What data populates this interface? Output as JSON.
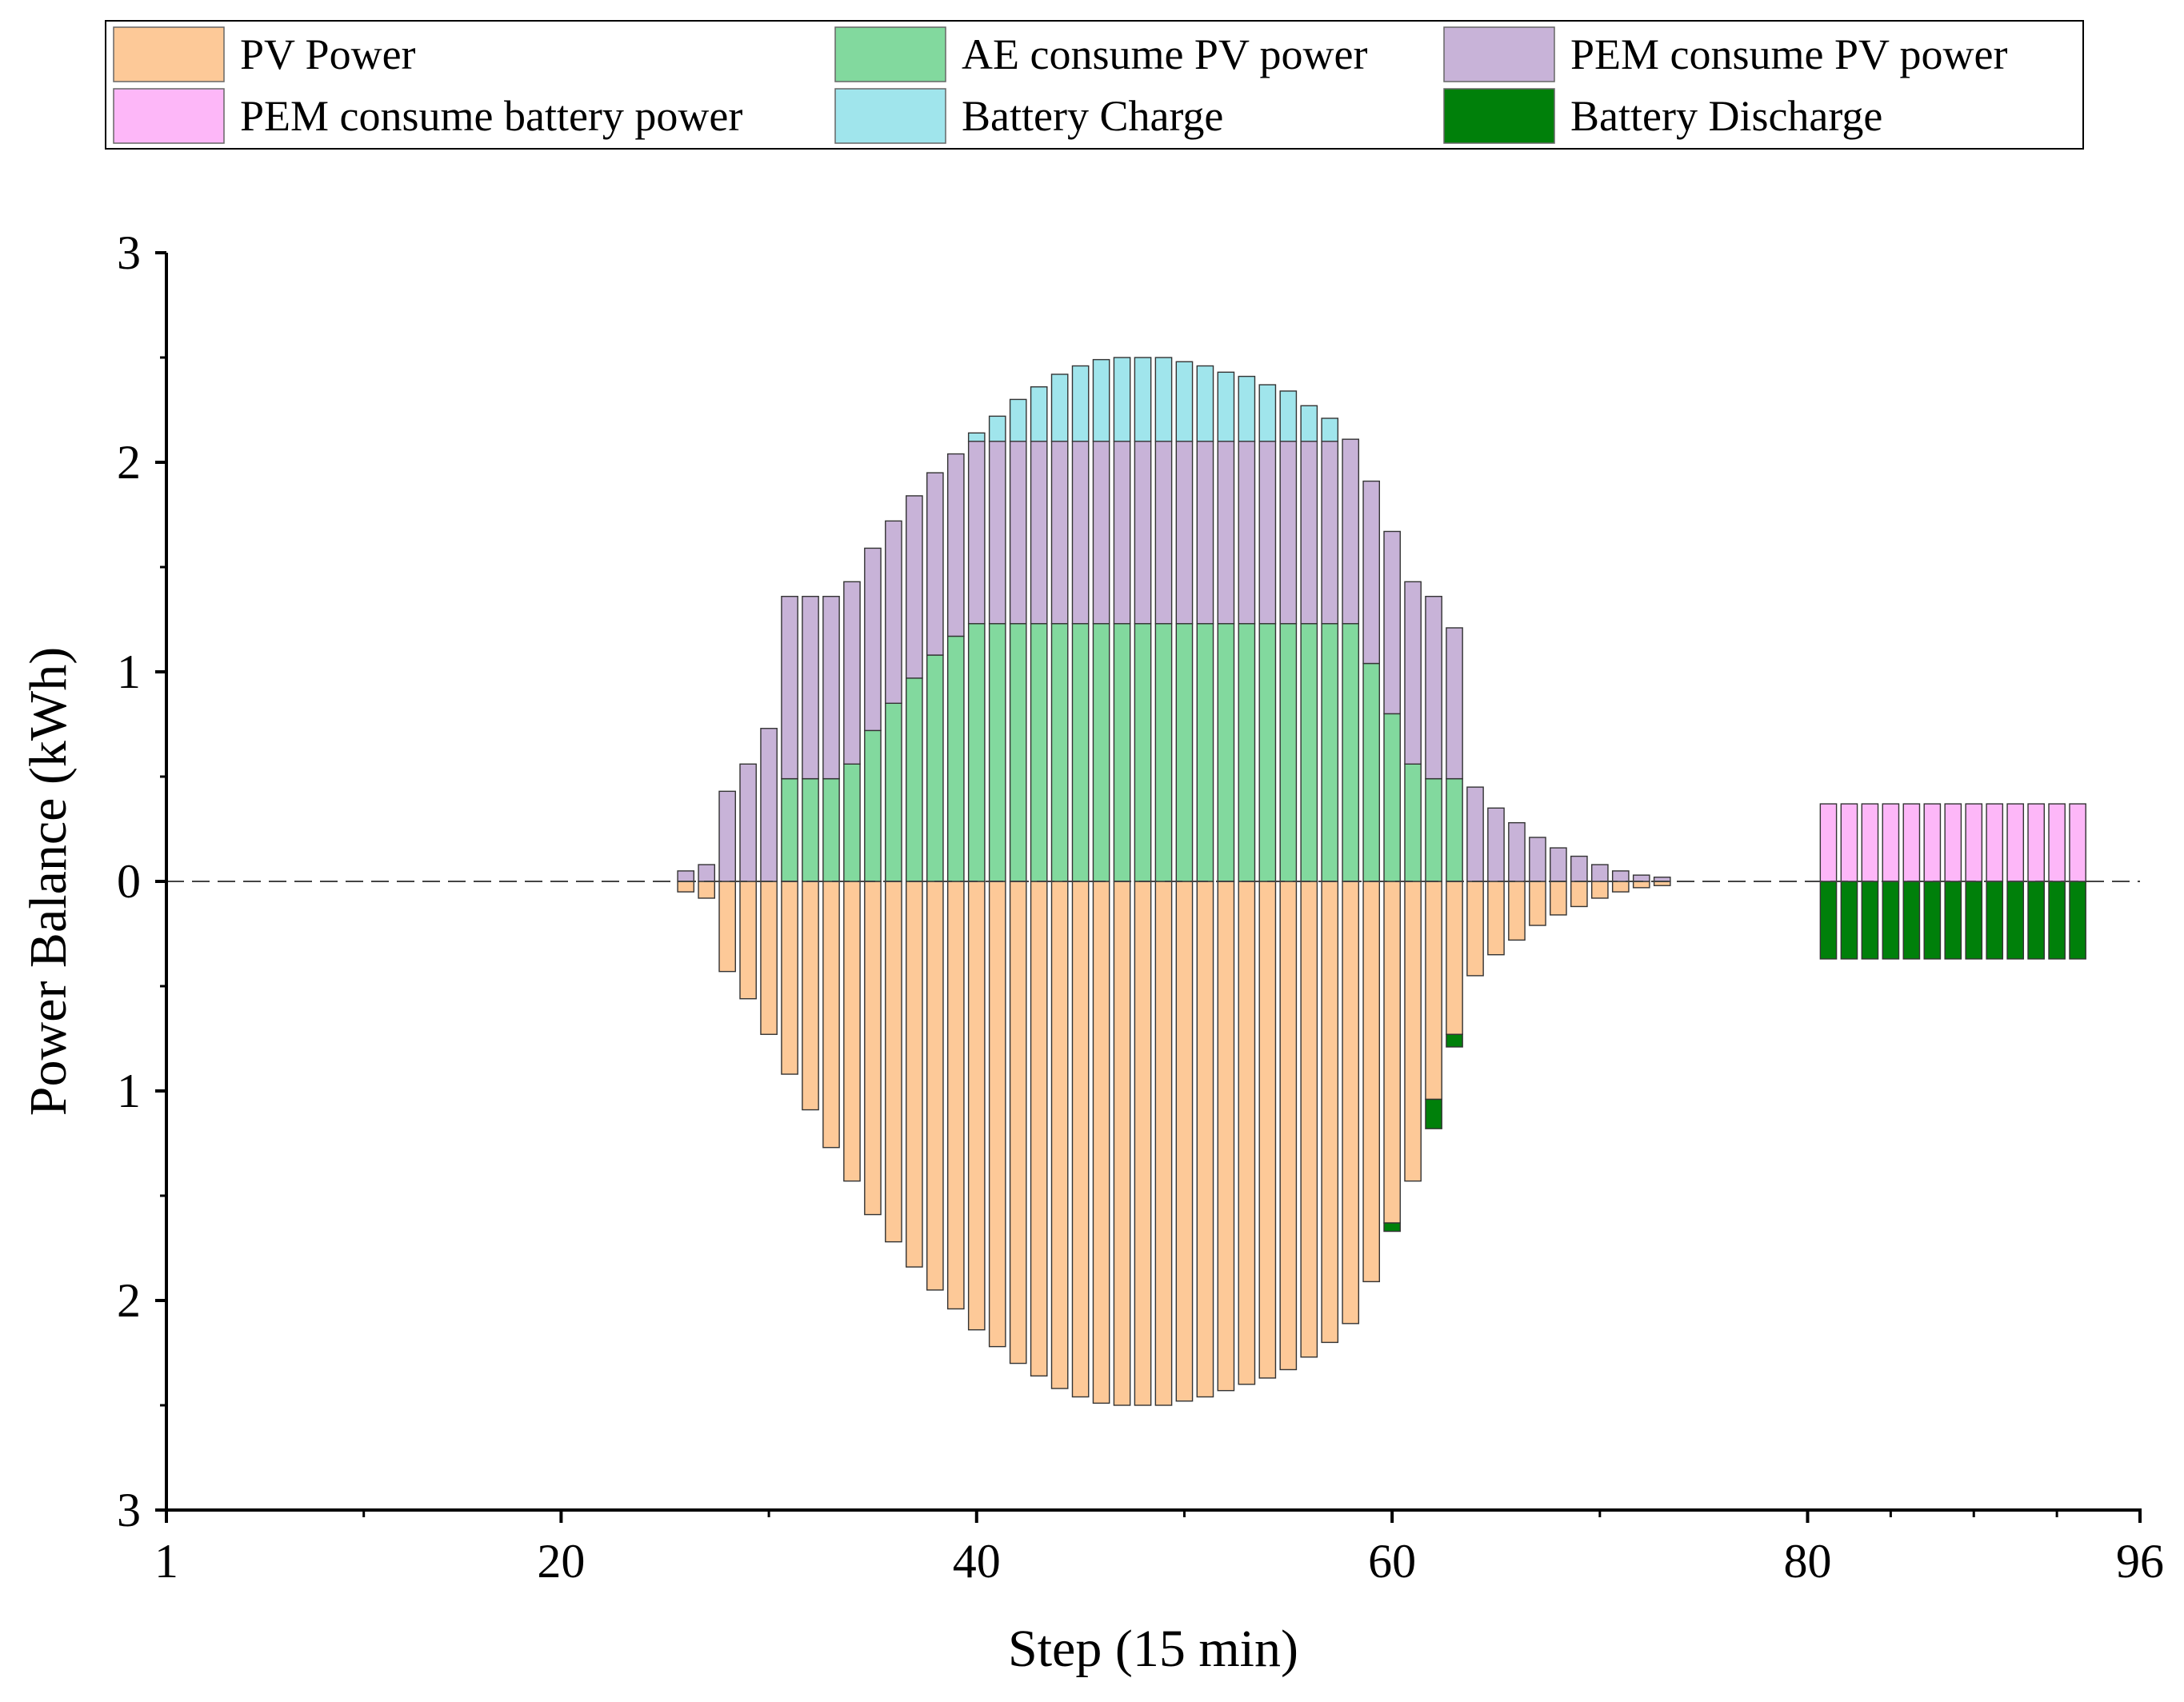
{
  "chart_data": {
    "type": "bar",
    "stacked": true,
    "xlabel": "Step (15 min)",
    "ylabel": "Power Balance (kWh)",
    "xlim": [
      1,
      96
    ],
    "ylim": [
      -3,
      3
    ],
    "x_ticks": [
      1,
      20,
      40,
      60,
      80,
      96
    ],
    "y_ticks": [
      3,
      2,
      1,
      0,
      -1,
      -2,
      -3
    ],
    "y_tick_labels": [
      "3",
      "2",
      "1",
      "0",
      "1",
      "2",
      "3"
    ],
    "zero_line": "dashed",
    "legend_position": "top",
    "colors": {
      "pv_power": "#FDC998",
      "ae_pv": "#82D99E",
      "pem_pv": "#C8B3D8",
      "pem_battery": "#FDB7F8",
      "battery_charge": "#A0E5EC",
      "battery_discharge": "#00800A"
    },
    "series": [
      {
        "key": "pv_power",
        "name": "PV Power",
        "direction": "negative",
        "points": [
          [
            26,
            0.05
          ],
          [
            27,
            0.08
          ],
          [
            28,
            0.43
          ],
          [
            29,
            0.56
          ],
          [
            30,
            0.73
          ],
          [
            31,
            0.92
          ],
          [
            32,
            1.09
          ],
          [
            33,
            1.27
          ],
          [
            34,
            1.43
          ],
          [
            35,
            1.59
          ],
          [
            36,
            1.72
          ],
          [
            37,
            1.84
          ],
          [
            38,
            1.95
          ],
          [
            39,
            2.04
          ],
          [
            40,
            2.14
          ],
          [
            41,
            2.22
          ],
          [
            42,
            2.3
          ],
          [
            43,
            2.36
          ],
          [
            44,
            2.42
          ],
          [
            45,
            2.46
          ],
          [
            46,
            2.49
          ],
          [
            47,
            2.5
          ],
          [
            48,
            2.5
          ],
          [
            49,
            2.5
          ],
          [
            50,
            2.48
          ],
          [
            51,
            2.46
          ],
          [
            52,
            2.43
          ],
          [
            53,
            2.4
          ],
          [
            54,
            2.37
          ],
          [
            55,
            2.33
          ],
          [
            56,
            2.27
          ],
          [
            57,
            2.2
          ],
          [
            58,
            2.11
          ],
          [
            59,
            1.91
          ],
          [
            60,
            1.63
          ],
          [
            61,
            1.43
          ],
          [
            62,
            1.04
          ],
          [
            63,
            0.73
          ],
          [
            64,
            0.45
          ],
          [
            65,
            0.35
          ],
          [
            66,
            0.28
          ],
          [
            67,
            0.21
          ],
          [
            68,
            0.16
          ],
          [
            69,
            0.12
          ],
          [
            70,
            0.08
          ],
          [
            71,
            0.05
          ],
          [
            72,
            0.03
          ],
          [
            73,
            0.02
          ]
        ]
      },
      {
        "key": "ae_pv",
        "name": "AE consume PV power",
        "direction": "positive",
        "points": [
          [
            31,
            0.49
          ],
          [
            32,
            0.49
          ],
          [
            33,
            0.49
          ],
          [
            34,
            0.56
          ],
          [
            35,
            0.72
          ],
          [
            36,
            0.85
          ],
          [
            37,
            0.97
          ],
          [
            38,
            1.08
          ],
          [
            39,
            1.17
          ],
          [
            40,
            1.23
          ],
          [
            41,
            1.23
          ],
          [
            42,
            1.23
          ],
          [
            43,
            1.23
          ],
          [
            44,
            1.23
          ],
          [
            45,
            1.23
          ],
          [
            46,
            1.23
          ],
          [
            47,
            1.23
          ],
          [
            48,
            1.23
          ],
          [
            49,
            1.23
          ],
          [
            50,
            1.23
          ],
          [
            51,
            1.23
          ],
          [
            52,
            1.23
          ],
          [
            53,
            1.23
          ],
          [
            54,
            1.23
          ],
          [
            55,
            1.23
          ],
          [
            56,
            1.23
          ],
          [
            57,
            1.23
          ],
          [
            58,
            1.23
          ],
          [
            59,
            1.04
          ],
          [
            60,
            0.8
          ],
          [
            61,
            0.56
          ],
          [
            62,
            0.49
          ],
          [
            63,
            0.49
          ]
        ]
      },
      {
        "key": "pem_pv",
        "name": "PEM consume PV power",
        "direction": "positive",
        "points": [
          [
            26,
            0.05
          ],
          [
            27,
            0.08
          ],
          [
            28,
            0.43
          ],
          [
            29,
            0.56
          ],
          [
            30,
            0.73
          ],
          [
            31,
            0.87
          ],
          [
            32,
            0.87
          ],
          [
            33,
            0.87
          ],
          [
            34,
            0.87
          ],
          [
            35,
            0.87
          ],
          [
            36,
            0.87
          ],
          [
            37,
            0.87
          ],
          [
            38,
            0.87
          ],
          [
            39,
            0.87
          ],
          [
            40,
            0.87
          ],
          [
            41,
            0.87
          ],
          [
            42,
            0.87
          ],
          [
            43,
            0.87
          ],
          [
            44,
            0.87
          ],
          [
            45,
            0.87
          ],
          [
            46,
            0.87
          ],
          [
            47,
            0.87
          ],
          [
            48,
            0.87
          ],
          [
            49,
            0.87
          ],
          [
            50,
            0.87
          ],
          [
            51,
            0.87
          ],
          [
            52,
            0.87
          ],
          [
            53,
            0.87
          ],
          [
            54,
            0.87
          ],
          [
            55,
            0.87
          ],
          [
            56,
            0.87
          ],
          [
            57,
            0.87
          ],
          [
            58,
            0.88
          ],
          [
            59,
            0.87
          ],
          [
            60,
            0.87
          ],
          [
            61,
            0.87
          ],
          [
            62,
            0.87
          ],
          [
            63,
            0.72
          ],
          [
            64,
            0.45
          ],
          [
            65,
            0.35
          ],
          [
            66,
            0.28
          ],
          [
            67,
            0.21
          ],
          [
            68,
            0.16
          ],
          [
            69,
            0.12
          ],
          [
            70,
            0.08
          ],
          [
            71,
            0.05
          ],
          [
            72,
            0.03
          ],
          [
            73,
            0.02
          ]
        ]
      },
      {
        "key": "pem_battery",
        "name": "PEM consume battery power",
        "direction": "positive",
        "points": [
          [
            81,
            0.37
          ],
          [
            82,
            0.37
          ],
          [
            83,
            0.37
          ],
          [
            84,
            0.37
          ],
          [
            85,
            0.37
          ],
          [
            86,
            0.37
          ],
          [
            87,
            0.37
          ],
          [
            88,
            0.37
          ],
          [
            89,
            0.37
          ],
          [
            90,
            0.37
          ],
          [
            91,
            0.37
          ],
          [
            92,
            0.37
          ],
          [
            93,
            0.37
          ]
        ]
      },
      {
        "key": "battery_charge",
        "name": "Battery Charge",
        "direction": "positive",
        "points": [
          [
            40,
            0.04
          ],
          [
            41,
            0.12
          ],
          [
            42,
            0.2
          ],
          [
            43,
            0.26
          ],
          [
            44,
            0.32
          ],
          [
            45,
            0.36
          ],
          [
            46,
            0.39
          ],
          [
            47,
            0.4
          ],
          [
            48,
            0.4
          ],
          [
            49,
            0.4
          ],
          [
            50,
            0.38
          ],
          [
            51,
            0.36
          ],
          [
            52,
            0.33
          ],
          [
            53,
            0.31
          ],
          [
            54,
            0.27
          ],
          [
            55,
            0.24
          ],
          [
            56,
            0.17
          ],
          [
            57,
            0.11
          ]
        ]
      },
      {
        "key": "battery_discharge",
        "name": "Battery Discharge",
        "direction": "negative",
        "points": [
          [
            60,
            0.04
          ],
          [
            62,
            0.14
          ],
          [
            63,
            0.06
          ],
          [
            81,
            0.37
          ],
          [
            82,
            0.37
          ],
          [
            83,
            0.37
          ],
          [
            84,
            0.37
          ],
          [
            85,
            0.37
          ],
          [
            86,
            0.37
          ],
          [
            87,
            0.37
          ],
          [
            88,
            0.37
          ],
          [
            89,
            0.37
          ],
          [
            90,
            0.37
          ],
          [
            91,
            0.37
          ],
          [
            92,
            0.37
          ],
          [
            93,
            0.37
          ]
        ]
      }
    ]
  }
}
